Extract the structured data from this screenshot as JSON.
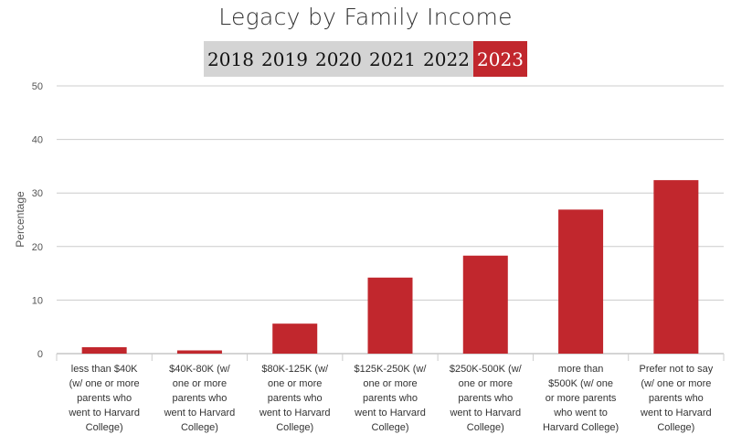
{
  "title": "Legacy by Family Income",
  "tabs": [
    {
      "label": "2018",
      "active": false
    },
    {
      "label": "2019",
      "active": false
    },
    {
      "label": "2020",
      "active": false
    },
    {
      "label": "2021",
      "active": false
    },
    {
      "label": "2022",
      "active": false
    },
    {
      "label": "2023",
      "active": true
    }
  ],
  "colors": {
    "bar": "#c1272d",
    "tab_bg": "#d4d4d4",
    "grid": "#cccccc"
  },
  "chart_data": {
    "type": "bar",
    "ylabel": "Percentage",
    "xlabel": "",
    "ylim": [
      0,
      50
    ],
    "yticks": [
      0,
      10,
      20,
      30,
      40,
      50
    ],
    "grid": true,
    "categories": [
      [
        "less than $40K",
        "(w/ one or more",
        "parents who",
        "went to Harvard",
        "College)"
      ],
      [
        "$40K-80K (w/",
        "one or more",
        "parents who",
        "went to Harvard",
        "College)"
      ],
      [
        "$80K-125K (w/",
        "one or more",
        "parents who",
        "went to Harvard",
        "College)"
      ],
      [
        "$125K-250K (w/",
        "one or more",
        "parents who",
        "went to Harvard",
        "College)"
      ],
      [
        "$250K-500K (w/",
        "one or more",
        "parents who",
        "went to Harvard",
        "College)"
      ],
      [
        "more than",
        "$500K (w/ one",
        "or more parents",
        "who went to",
        "Harvard College)"
      ],
      [
        "Prefer not to say",
        "(w/ one or more",
        "parents who",
        "went to Harvard",
        "College)"
      ]
    ],
    "values": [
      1.2,
      0.6,
      5.6,
      14.2,
      18.3,
      26.9,
      32.4
    ]
  }
}
